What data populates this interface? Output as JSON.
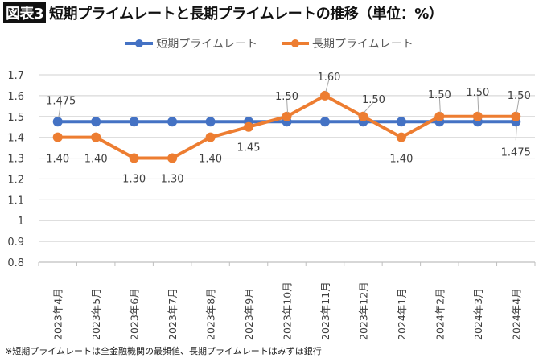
{
  "title": {
    "badge": "図表3",
    "text": "短期プライムレートと長期プライムレートの推移（単位：%）"
  },
  "footnote": "※短期プライムレートは全金融機関の最頻値、長期プライムレートはみずほ銀行",
  "chart_data": {
    "type": "line",
    "categories": [
      "2023年4月",
      "2023年5月",
      "2023年6月",
      "2023年7月",
      "2023年8月",
      "2023年9月",
      "2023年10月",
      "2023年11月",
      "2023年12月",
      "2024年1月",
      "2024年2月",
      "2024年3月",
      "2024年4月"
    ],
    "series": [
      {
        "name": "短期プライムレート",
        "color": "#4472C4",
        "values": [
          1.475,
          1.475,
          1.475,
          1.475,
          1.475,
          1.475,
          1.475,
          1.475,
          1.475,
          1.475,
          1.475,
          1.475,
          1.475
        ],
        "labels": [
          "1.475",
          "",
          "",
          "",
          "",
          "",
          "",
          "",
          "",
          "",
          "",
          "",
          "1.475"
        ]
      },
      {
        "name": "長期プライムレート",
        "color": "#ED7D31",
        "values": [
          1.4,
          1.4,
          1.3,
          1.3,
          1.4,
          1.45,
          1.5,
          1.6,
          1.5,
          1.4,
          1.5,
          1.5,
          1.5
        ],
        "labels": [
          "1.40",
          "1.40",
          "1.30",
          "1.30",
          "1.40",
          "1.45",
          "1.50",
          "1.60",
          "1.50",
          "1.40",
          "1.50",
          "1.50",
          "1.50"
        ]
      }
    ],
    "ylim": [
      0.8,
      1.7
    ],
    "yticks": [
      "0.8",
      "0.9",
      "1",
      "1.1",
      "1.2",
      "1.3",
      "1.4",
      "1.5",
      "1.6",
      "1.7"
    ],
    "grid": true,
    "legend": "top"
  }
}
